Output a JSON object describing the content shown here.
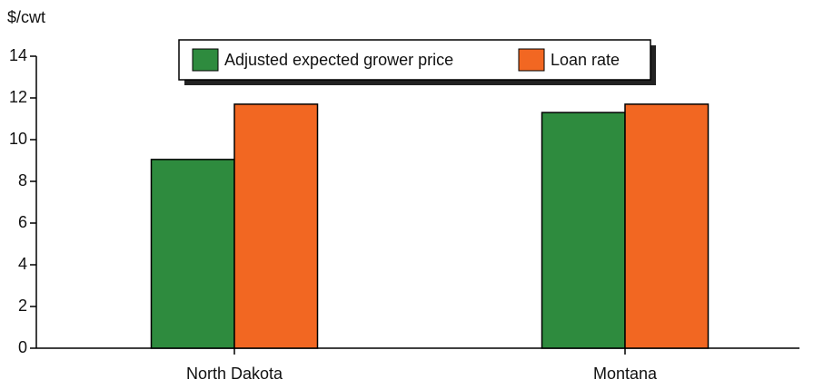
{
  "chart_data": {
    "type": "bar",
    "y_label": "$/cwt",
    "categories": [
      "North Dakota",
      "Montana"
    ],
    "series": [
      {
        "name": "Adjusted expected grower price",
        "color": "#2e8b3e",
        "values": [
          9.05,
          11.3
        ]
      },
      {
        "name": "Loan rate",
        "color": "#f26722",
        "values": [
          11.7,
          11.7
        ]
      }
    ],
    "ylim": [
      0,
      14
    ],
    "yticks": [
      0,
      2,
      4,
      6,
      8,
      10,
      12,
      14
    ],
    "grid": false,
    "legend": "top"
  }
}
